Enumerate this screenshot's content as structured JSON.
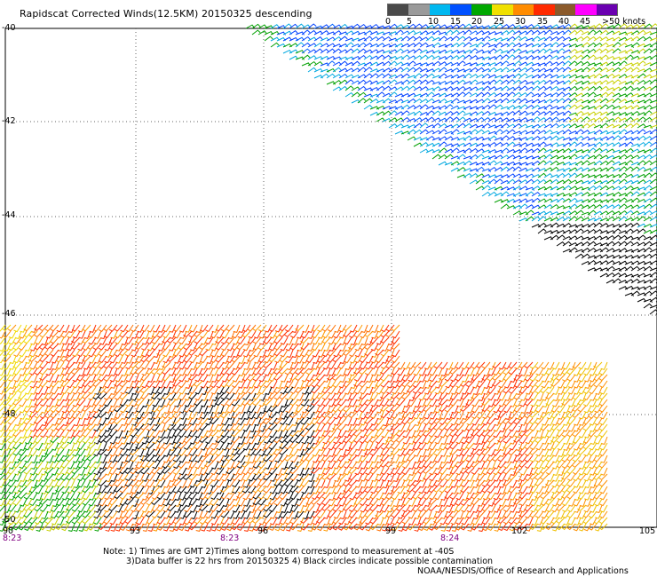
{
  "title": "Rapidscat Corrected Winds(12.5KM) 20150325 descending",
  "legend": {
    "labels": [
      "0",
      "5",
      "10",
      "15",
      "20",
      "25",
      "30",
      "35",
      "40",
      "45",
      ">50 knots"
    ],
    "colors": [
      "#555555",
      "#8a8a8a",
      "#00a0e8",
      "#0040ff",
      "#00b400",
      "#f0e000",
      "#ff9000",
      "#ff3000",
      "#a05a2c",
      "#ff00ff",
      "#6000a0"
    ]
  },
  "lat_labels": [
    "-40",
    "-42",
    "-44",
    "-46",
    "-48",
    "-50"
  ],
  "lon_labels": [
    "90",
    "93",
    "96",
    "99",
    "102",
    "105"
  ],
  "time_labels": [
    "8:23",
    "8:23",
    "8:24"
  ],
  "notes": [
    "Note: 1) Times are GMT 2)Times along bottom correspond to measurement at -40S",
    "3)Data buffer is 22 hrs from 20150325 4) Black circles indicate possible contamination"
  ],
  "credit": "NOAA/NESDIS/Office of Research and Applications"
}
